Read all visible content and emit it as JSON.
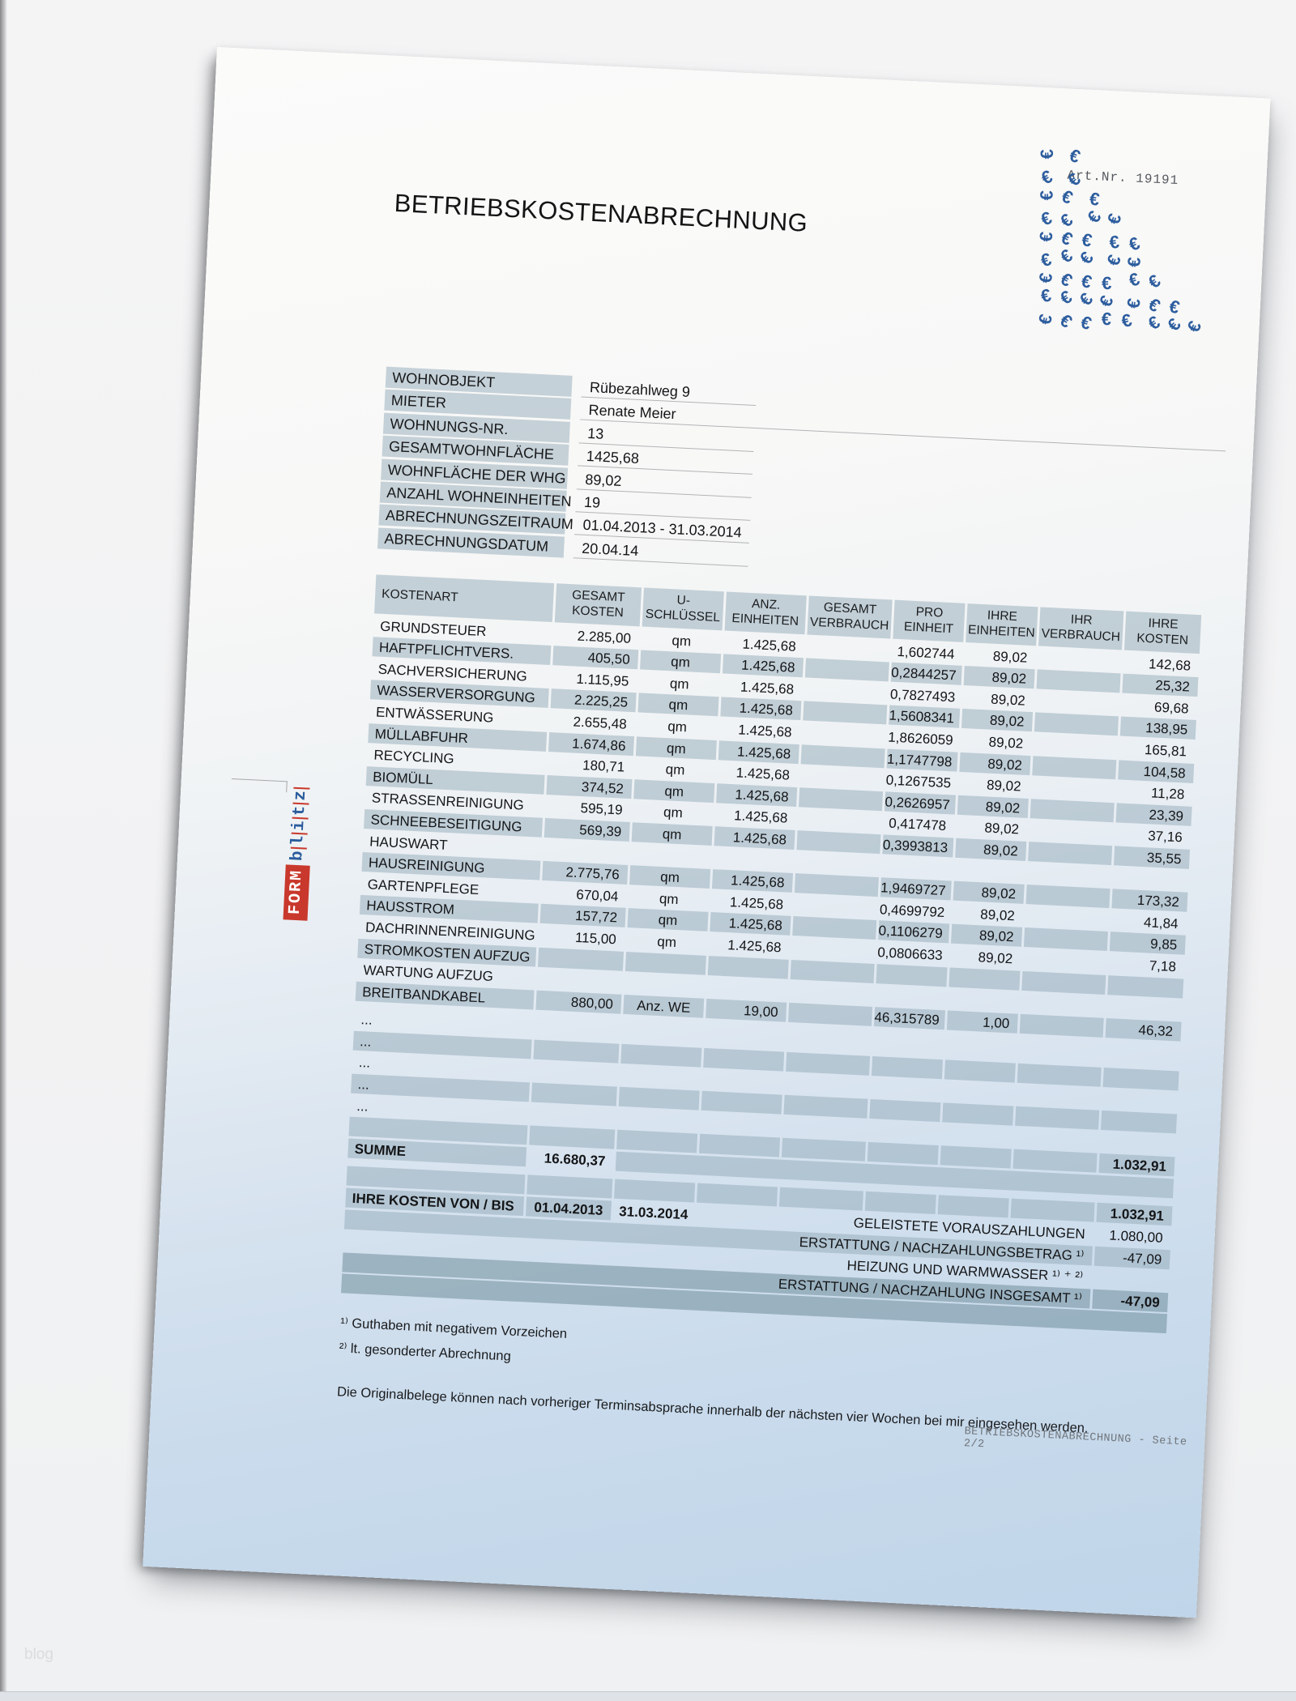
{
  "page": {
    "title": "BETRIEBSKOSTENABRECHNUNG",
    "art_nr": "Art.Nr. 19191",
    "watermark": "blog",
    "footer": "BETRIEBSKOSTENABRECHNUNG - Seite 2/2",
    "logo": {
      "form": "FORM",
      "blitz": [
        "b",
        "l",
        "i",
        "t",
        "z"
      ]
    },
    "euro_pattern": {
      "glyph": "€",
      "color": "#2d5d9e",
      "rows": [
        2,
        2,
        3,
        4,
        5,
        5,
        6,
        7,
        8
      ]
    }
  },
  "info_table": {
    "rows": [
      {
        "label": "WOHNOBJEKT",
        "value": "Rübezahlweg 9",
        "long_line": false
      },
      {
        "label": "MIETER",
        "value": "Renate Meier",
        "long_line": true
      },
      {
        "label": "WOHNUNGS-NR.",
        "value": "13",
        "long_line": false
      },
      {
        "label": "GESAMTWOHNFLÄCHE",
        "value": "1425,68",
        "long_line": false
      },
      {
        "label": "WOHNFLÄCHE DER WHG",
        "value": "89,02",
        "long_line": false
      },
      {
        "label": "ANZAHL WOHNEINHEITEN",
        "value": "19",
        "long_line": false
      },
      {
        "label": "ABRECHNUNGSZEITRAUM",
        "value": "01.04.2013 - 31.03.2014",
        "long_line": false
      },
      {
        "label": "ABRECHNUNGSDATUM",
        "value": "20.04.14",
        "long_line": false
      }
    ]
  },
  "cost_table": {
    "headers": [
      {
        "l1": "KOSTENART",
        "l2": ""
      },
      {
        "l1": "GESAMT",
        "l2": "KOSTEN"
      },
      {
        "l1": "U-",
        "l2": "SCHLÜSSEL"
      },
      {
        "l1": "ANZ.",
        "l2": "EINHEITEN"
      },
      {
        "l1": "GESAMT",
        "l2": "VERBRAUCH"
      },
      {
        "l1": "PRO",
        "l2": "EINHEIT"
      },
      {
        "l1": "IHRE",
        "l2": "EINHEITEN"
      },
      {
        "l1": "IHR",
        "l2": "VERBRAUCH"
      },
      {
        "l1": "IHRE",
        "l2": "KOSTEN"
      }
    ],
    "rows": [
      {
        "name": "GRUNDSTEUER",
        "shaded": false,
        "bare": false,
        "cells": [
          "2.285,00",
          "qm",
          "1.425,68",
          "",
          "1,602744",
          "89,02",
          "",
          "142,68"
        ]
      },
      {
        "name": "HAFTPFLICHTVERS.",
        "shaded": true,
        "bare": false,
        "cells": [
          "405,50",
          "qm",
          "1.425,68",
          "",
          "0,2844257",
          "89,02",
          "",
          "25,32"
        ]
      },
      {
        "name": "SACHVERSICHERUNG",
        "shaded": false,
        "bare": false,
        "cells": [
          "1.115,95",
          "qm",
          "1.425,68",
          "",
          "0,7827493",
          "89,02",
          "",
          "69,68"
        ]
      },
      {
        "name": "WASSERVERSORGUNG",
        "shaded": true,
        "bare": false,
        "cells": [
          "2.225,25",
          "qm",
          "1.425,68",
          "",
          "1,5608341",
          "89,02",
          "",
          "138,95"
        ]
      },
      {
        "name": "ENTWÄSSERUNG",
        "shaded": false,
        "bare": false,
        "cells": [
          "2.655,48",
          "qm",
          "1.425,68",
          "",
          "1,8626059",
          "89,02",
          "",
          "165,81"
        ]
      },
      {
        "name": "MÜLLABFUHR",
        "shaded": true,
        "bare": false,
        "cells": [
          "1.674,86",
          "qm",
          "1.425,68",
          "",
          "1,1747798",
          "89,02",
          "",
          "104,58"
        ]
      },
      {
        "name": "RECYCLING",
        "shaded": false,
        "bare": false,
        "cells": [
          "180,71",
          "qm",
          "1.425,68",
          "",
          "0,1267535",
          "89,02",
          "",
          "11,28"
        ]
      },
      {
        "name": "BIOMÜLL",
        "shaded": true,
        "bare": false,
        "cells": [
          "374,52",
          "qm",
          "1.425,68",
          "",
          "0,2626957",
          "89,02",
          "",
          "23,39"
        ]
      },
      {
        "name": "STRASSENREINIGUNG",
        "shaded": false,
        "bare": false,
        "cells": [
          "595,19",
          "qm",
          "1.425,68",
          "",
          "0,417478",
          "89,02",
          "",
          "37,16"
        ]
      },
      {
        "name": "SCHNEEBESEITIGUNG",
        "shaded": true,
        "bare": false,
        "cells": [
          "569,39",
          "qm",
          "1.425,68",
          "",
          "0,3993813",
          "89,02",
          "",
          "35,55"
        ]
      },
      {
        "name": "HAUSWART",
        "shaded": false,
        "bare": true,
        "cells": [
          "",
          "",
          "",
          "",
          "",
          "",
          "",
          ""
        ]
      },
      {
        "name": "HAUSREINIGUNG",
        "shaded": true,
        "bare": false,
        "cells": [
          "2.775,76",
          "qm",
          "1.425,68",
          "",
          "1,9469727",
          "89,02",
          "",
          "173,32"
        ]
      },
      {
        "name": "GARTENPFLEGE",
        "shaded": false,
        "bare": false,
        "cells": [
          "670,04",
          "qm",
          "1.425,68",
          "",
          "0,4699792",
          "89,02",
          "",
          "41,84"
        ]
      },
      {
        "name": "HAUSSTROM",
        "shaded": true,
        "bare": false,
        "cells": [
          "157,72",
          "qm",
          "1.425,68",
          "",
          "0,1106279",
          "89,02",
          "",
          "9,85"
        ]
      },
      {
        "name": "DACHRINNENREINIGUNG",
        "shaded": false,
        "bare": false,
        "cells": [
          "115,00",
          "qm",
          "1.425,68",
          "",
          "0,0806633",
          "89,02",
          "",
          "7,18"
        ]
      },
      {
        "name": "STROMKOSTEN AUFZUG",
        "shaded": true,
        "bare": false,
        "cells": [
          "",
          "",
          "",
          "",
          "",
          "",
          "",
          ""
        ]
      },
      {
        "name": "WARTUNG AUFZUG",
        "shaded": false,
        "bare": true,
        "cells": [
          "",
          "",
          "",
          "",
          "",
          "",
          "",
          ""
        ]
      },
      {
        "name": "BREITBANDKABEL",
        "shaded": true,
        "bare": false,
        "cells": [
          "880,00",
          "Anz. WE",
          "19,00",
          "",
          "46,315789",
          "1,00",
          "",
          "46,32"
        ]
      }
    ],
    "dots_rows": [
      {
        "label": "...",
        "shaded": false
      },
      {
        "label": "...",
        "shaded": true
      },
      {
        "label": "...",
        "shaded": false
      },
      {
        "label": "...",
        "shaded": true
      },
      {
        "label": "...",
        "shaded": false
      }
    ]
  },
  "totals": {
    "pre_summe_total": "1.032,91",
    "summe_label": "SUMME",
    "summe_value": "16.680,37",
    "post_summe_total": "1.032,91",
    "period_label": "IHRE KOSTEN VON / BIS",
    "period_from": "01.04.2013",
    "period_to": "31.03.2014",
    "advance_label": "GELEISTETE VORAUSZAHLUNGEN",
    "advance_value": "1.080,00",
    "refund_label": "ERSTATTUNG / NACHZAHLUNGSBETRAG ¹⁾",
    "refund_value": "-47,09",
    "heating_label": "HEIZUNG UND WARMWASSER ¹⁾ ⁺ ²⁾",
    "grand_label": "ERSTATTUNG / NACHZAHLUNG INSGESAMT ¹⁾",
    "grand_value": "-47,09"
  },
  "footnotes": [
    "¹⁾ Guthaben mit negativem Vorzeichen",
    "²⁾ lt. gesonderter Abrechnung"
  ],
  "note": "Die Originalbelege können nach vorheriger Terminsabsprache innerhalb der nächsten vier Wochen bei mir eingesehen werden."
}
